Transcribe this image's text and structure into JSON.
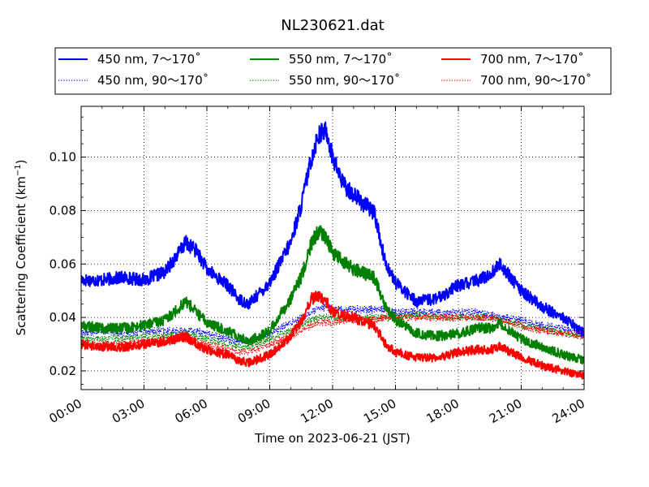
{
  "chart_data": {
    "type": "line",
    "title": "NL230621.dat",
    "xlabel": "Time on 2023-06-21 (JST)",
    "ylabel_main": "Scattering Coefficient (km",
    "ylabel_sup": "−1",
    "ylabel_end": ")",
    "xlim": [
      0,
      24
    ],
    "ylim": [
      0.013,
      0.119
    ],
    "x_ticks": [
      0,
      3,
      6,
      9,
      12,
      15,
      18,
      21,
      24
    ],
    "x_tick_labels": [
      "00:00",
      "03:00",
      "06:00",
      "09:00",
      "12:00",
      "15:00",
      "18:00",
      "21:00",
      "24:00"
    ],
    "y_ticks": [
      0.02,
      0.04,
      0.06,
      0.08,
      0.1
    ],
    "y_tick_labels": [
      "0.02",
      "0.04",
      "0.06",
      "0.08",
      "0.10"
    ],
    "grid": true,
    "legend_position": "top",
    "x_hours": [
      0,
      1,
      2,
      3,
      4,
      5,
      5.5,
      6,
      7,
      7.5,
      8,
      9,
      10,
      10.5,
      11,
      11.3,
      11.7,
      12,
      12.5,
      13,
      14,
      14.5,
      15,
      16,
      17,
      18,
      19,
      19.5,
      20,
      21,
      22,
      23,
      24
    ],
    "series": [
      {
        "name": "450 nm, 7～170˚",
        "color": "#0000ff",
        "style": "solid",
        "values": [
          0.054,
          0.054,
          0.055,
          0.054,
          0.057,
          0.068,
          0.065,
          0.058,
          0.052,
          0.047,
          0.045,
          0.053,
          0.068,
          0.082,
          0.1,
          0.108,
          0.11,
          0.1,
          0.09,
          0.086,
          0.079,
          0.061,
          0.053,
          0.046,
          0.047,
          0.052,
          0.054,
          0.056,
          0.06,
          0.05,
          0.044,
          0.04,
          0.034
        ]
      },
      {
        "name": "450 nm, 90～170˚",
        "color": "#0000ff",
        "style": "dotted",
        "values": [
          0.034,
          0.035,
          0.034,
          0.035,
          0.035,
          0.035,
          0.035,
          0.034,
          0.032,
          0.031,
          0.031,
          0.034,
          0.038,
          0.04,
          0.042,
          0.043,
          0.044,
          0.043,
          0.043,
          0.043,
          0.043,
          0.043,
          0.042,
          0.042,
          0.042,
          0.042,
          0.042,
          0.041,
          0.04,
          0.039,
          0.037,
          0.036,
          0.035
        ]
      },
      {
        "name": "550 nm, 7～170˚",
        "color": "#008000",
        "style": "solid",
        "values": [
          0.037,
          0.036,
          0.036,
          0.037,
          0.039,
          0.046,
          0.042,
          0.038,
          0.035,
          0.033,
          0.031,
          0.035,
          0.047,
          0.055,
          0.068,
          0.072,
          0.07,
          0.064,
          0.061,
          0.058,
          0.055,
          0.044,
          0.039,
          0.034,
          0.033,
          0.034,
          0.036,
          0.036,
          0.038,
          0.032,
          0.029,
          0.026,
          0.024
        ]
      },
      {
        "name": "550 nm, 90～170˚",
        "color": "#008000",
        "style": "dotted",
        "values": [
          0.032,
          0.032,
          0.032,
          0.033,
          0.033,
          0.034,
          0.033,
          0.032,
          0.03,
          0.029,
          0.029,
          0.032,
          0.035,
          0.037,
          0.039,
          0.04,
          0.04,
          0.04,
          0.04,
          0.04,
          0.04,
          0.04,
          0.04,
          0.041,
          0.04,
          0.04,
          0.04,
          0.04,
          0.039,
          0.037,
          0.036,
          0.034,
          0.033
        ]
      },
      {
        "name": "700 nm, 7～170˚",
        "color": "#ff0000",
        "style": "solid",
        "values": [
          0.03,
          0.029,
          0.029,
          0.03,
          0.031,
          0.033,
          0.03,
          0.028,
          0.026,
          0.024,
          0.023,
          0.026,
          0.033,
          0.038,
          0.047,
          0.048,
          0.046,
          0.042,
          0.041,
          0.04,
          0.037,
          0.03,
          0.027,
          0.025,
          0.025,
          0.027,
          0.028,
          0.028,
          0.029,
          0.025,
          0.022,
          0.02,
          0.018
        ]
      },
      {
        "name": "700 nm, 90～170˚",
        "color": "#ff0000",
        "style": "dotted",
        "values": [
          0.03,
          0.03,
          0.03,
          0.031,
          0.031,
          0.032,
          0.031,
          0.03,
          0.028,
          0.027,
          0.027,
          0.03,
          0.033,
          0.035,
          0.037,
          0.038,
          0.038,
          0.038,
          0.039,
          0.039,
          0.039,
          0.04,
          0.04,
          0.04,
          0.04,
          0.04,
          0.04,
          0.04,
          0.039,
          0.037,
          0.035,
          0.034,
          0.033
        ]
      }
    ]
  }
}
